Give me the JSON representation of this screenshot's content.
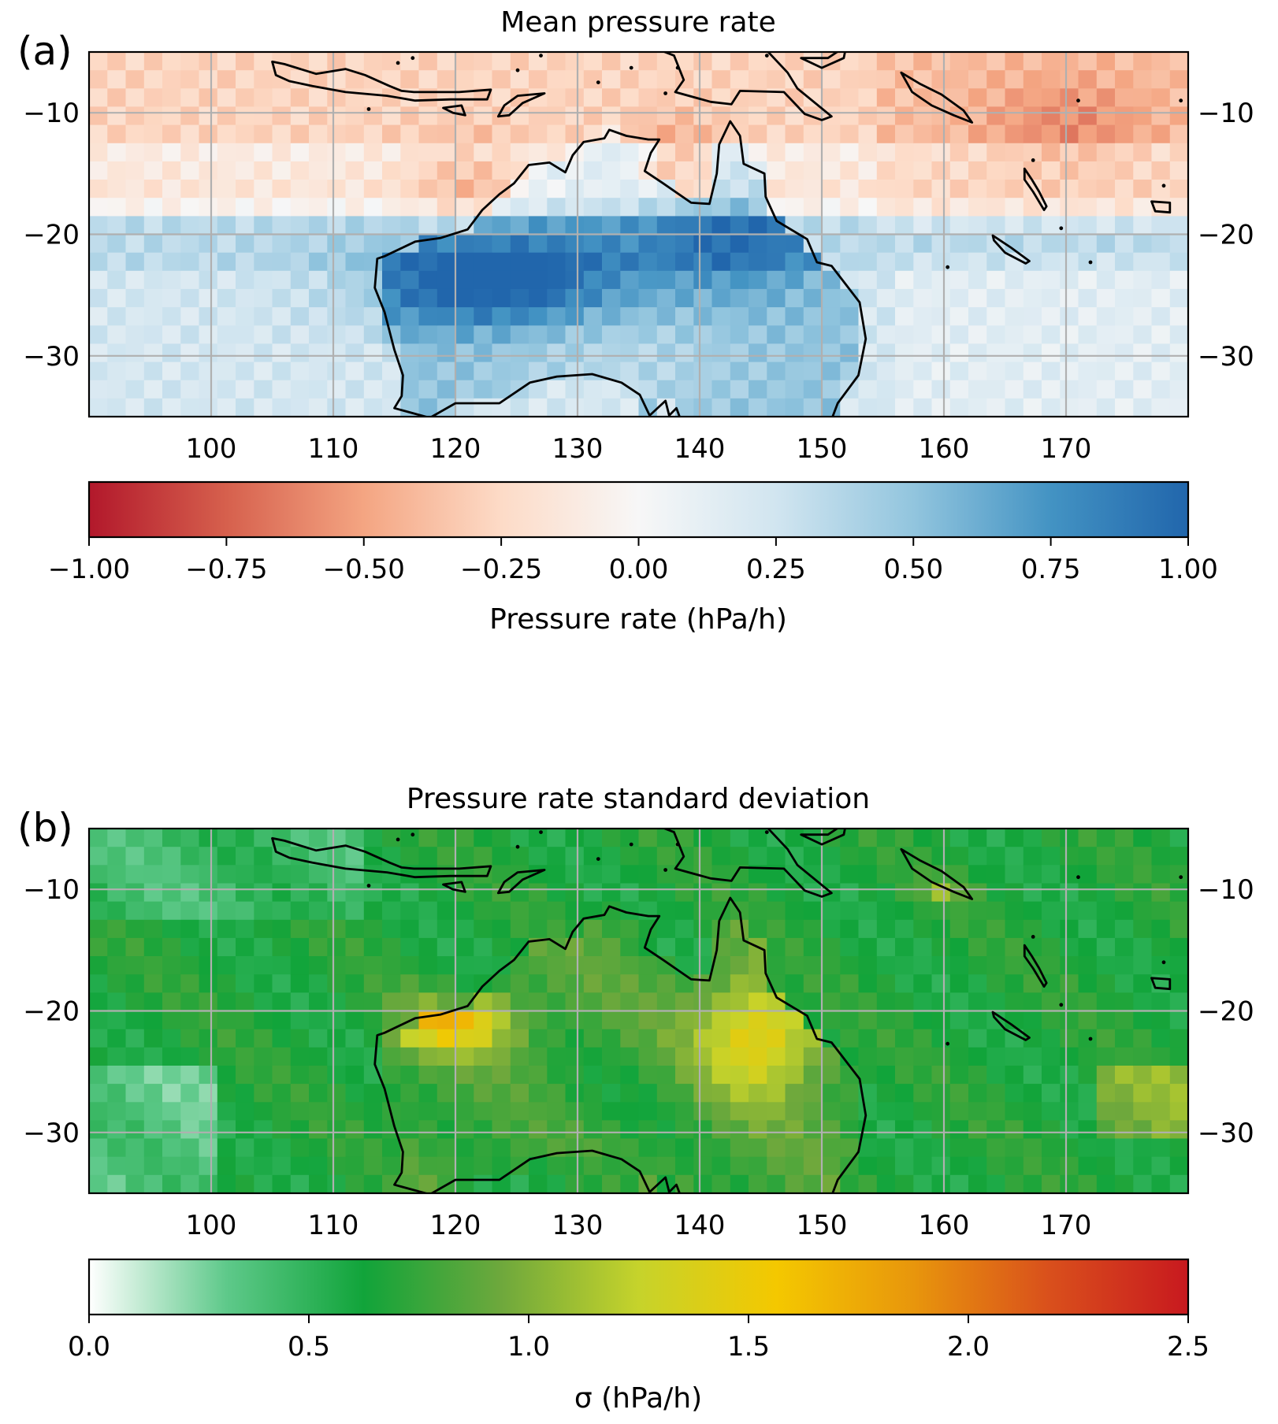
{
  "panels": [
    {
      "id": "a",
      "label": "(a)",
      "title": "Mean pressure rate",
      "lon_range": [
        90,
        180
      ],
      "lat_range": [
        -35,
        -5
      ],
      "x_ticks": [
        100,
        110,
        120,
        130,
        140,
        150,
        160,
        170
      ],
      "x_tick_labels": [
        "100",
        "110",
        "120",
        "130",
        "140",
        "150",
        "160",
        "170"
      ],
      "y_ticks": [
        -10,
        -20,
        -30
      ],
      "y_tick_labels": [
        "−10",
        "−20",
        "−30"
      ],
      "grid": true,
      "field": "mean",
      "colorbar": {
        "range": [
          -1.0,
          1.0
        ],
        "ticks": [
          -1.0,
          -0.75,
          -0.5,
          -0.25,
          0.0,
          0.25,
          0.5,
          0.75,
          1.0
        ],
        "tick_labels": [
          "−1.00",
          "−0.75",
          "−0.50",
          "−0.25",
          "0.00",
          "0.25",
          "0.50",
          "0.75",
          "1.00"
        ],
        "label": "Pressure rate (hPa/h)",
        "colors": [
          "#b2182b",
          "#d6604d",
          "#f4a582",
          "#fddbc7",
          "#f7f7f7",
          "#d1e5f0",
          "#92c5de",
          "#4393c3",
          "#2166ac"
        ]
      }
    },
    {
      "id": "b",
      "label": "(b)",
      "title": "Pressure rate standard deviation",
      "lon_range": [
        90,
        180
      ],
      "lat_range": [
        -35,
        -5
      ],
      "x_ticks": [
        100,
        110,
        120,
        130,
        140,
        150,
        160,
        170
      ],
      "x_tick_labels": [
        "100",
        "110",
        "120",
        "130",
        "140",
        "150",
        "160",
        "170"
      ],
      "y_ticks": [
        -10,
        -20,
        -30
      ],
      "y_tick_labels": [
        "−10",
        "−20",
        "−30"
      ],
      "grid": true,
      "field": "std",
      "colorbar": {
        "range": [
          0.0,
          2.5
        ],
        "ticks": [
          0.0,
          0.5,
          1.0,
          1.5,
          2.0,
          2.5
        ],
        "tick_labels": [
          "0.0",
          "0.5",
          "1.0",
          "1.5",
          "2.0",
          "2.5"
        ],
        "label": "σ (hPa/h)",
        "colors": [
          "#ffffff",
          "#5ec98a",
          "#11a43a",
          "#6ea83c",
          "#c6d32b",
          "#f4c800",
          "#e8960c",
          "#d94f1c",
          "#c8191f"
        ]
      }
    }
  ]
}
